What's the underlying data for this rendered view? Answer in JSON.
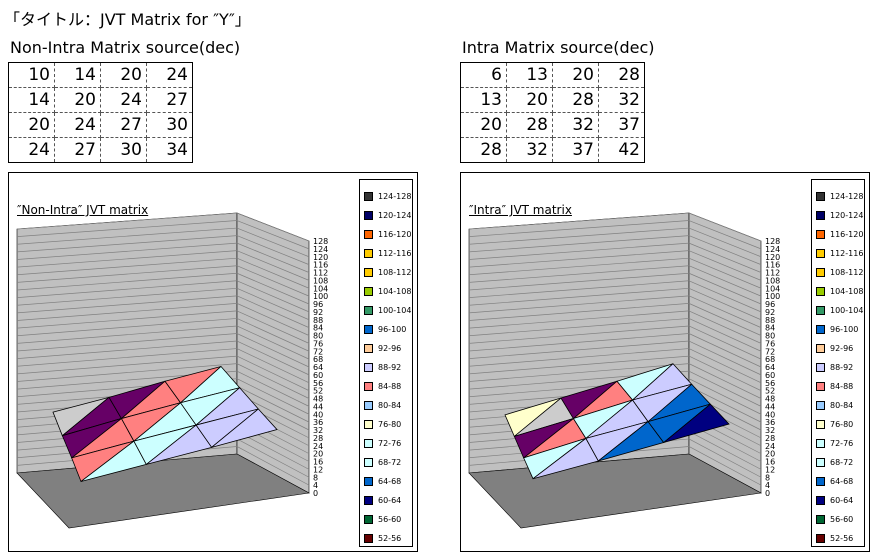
{
  "page": {
    "title": "「タイトル：JVT Matrix for ″Y″」"
  },
  "colors": {
    "wall": "#c0c0c0",
    "floor": "#808080",
    "wall_line": "#808080"
  },
  "legend_labels": [
    "124-128",
    "120-124",
    "116-120",
    "112-116",
    "108-112",
    "104-108",
    "100-104",
    "96-100",
    "92-96",
    "88-92",
    "84-88",
    "80-84",
    "76-80",
    "72-76",
    "68-72",
    "64-68",
    "60-64",
    "56-60",
    "52-56"
  ],
  "legend_colors": [
    "#333333",
    "#000066",
    "#ff6600",
    "#ffcc00",
    "#ffcc00",
    "#99cc00",
    "#339966",
    "#0066cc",
    "#ffcc99",
    "#ccccff",
    "#ff8080",
    "#99ccff",
    "#ffffcc",
    "#ccffff",
    "#ccffff",
    "#0066cc",
    "#000080",
    "#006633",
    "#660000"
  ],
  "band_colors": {
    "16-20": "#660066",
    "20-24": "#ff8080",
    "24-28": "#ccffff",
    "28-32": "#ccccff",
    "32-36": "#0066cc",
    "36-40": "#000080",
    "40-44": "#ff00ff",
    "4-8": "#800080",
    "8-12": "#ffffcc"
  },
  "z_ticks": [
    "128",
    "124",
    "120",
    "116",
    "112",
    "108",
    "104",
    "100",
    "96",
    "92",
    "88",
    "84",
    "80",
    "76",
    "72",
    "68",
    "64",
    "60",
    "56",
    "52",
    "48",
    "44",
    "40",
    "36",
    "32",
    "28",
    "24",
    "20",
    "16",
    "12",
    "8",
    "4",
    "0"
  ],
  "chart_data": [
    {
      "type": "table",
      "title": "Non-Intra Matrix source(dec)",
      "rows": [
        [
          10,
          14,
          20,
          24
        ],
        [
          14,
          20,
          24,
          27
        ],
        [
          20,
          24,
          27,
          30
        ],
        [
          24,
          27,
          30,
          34
        ]
      ]
    },
    {
      "type": "table",
      "title": "Intra Matrix source(dec)",
      "rows": [
        [
          6,
          13,
          20,
          28
        ],
        [
          13,
          20,
          28,
          32
        ],
        [
          20,
          28,
          32,
          37
        ],
        [
          28,
          32,
          37,
          42
        ]
      ]
    },
    {
      "type": "area",
      "subtype": "3d-surface",
      "title": "″Non-Intra″ JVT matrix",
      "z": [
        [
          10,
          14,
          20,
          24
        ],
        [
          14,
          20,
          24,
          27
        ],
        [
          20,
          24,
          27,
          30
        ],
        [
          24,
          27,
          30,
          34
        ]
      ],
      "zlim": [
        0,
        128
      ],
      "z_step": 4,
      "legend_position": "right"
    },
    {
      "type": "area",
      "subtype": "3d-surface",
      "title": "″Intra″ JVT matrix",
      "z": [
        [
          6,
          13,
          20,
          28
        ],
        [
          13,
          20,
          28,
          32
        ],
        [
          20,
          28,
          32,
          37
        ],
        [
          28,
          32,
          37,
          42
        ]
      ],
      "zlim": [
        0,
        128
      ],
      "z_step": 4,
      "legend_position": "right"
    }
  ]
}
